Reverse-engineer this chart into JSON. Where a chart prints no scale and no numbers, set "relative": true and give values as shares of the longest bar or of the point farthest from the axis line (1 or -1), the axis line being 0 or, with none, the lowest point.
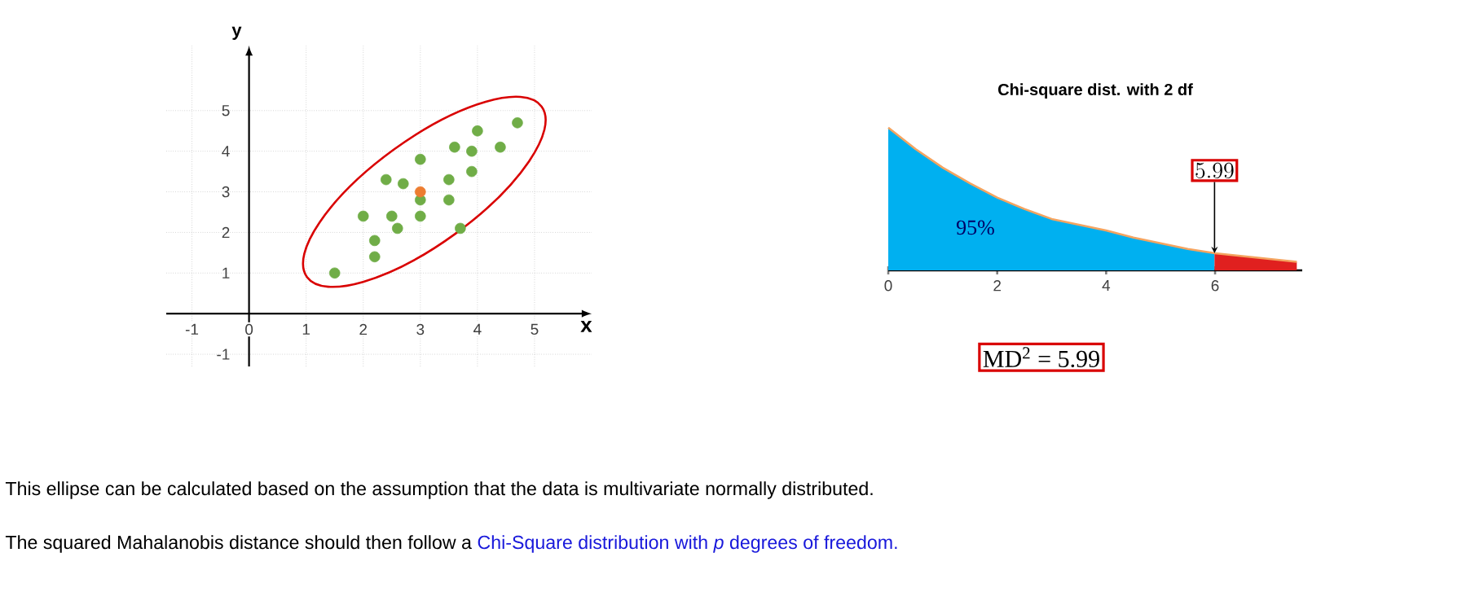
{
  "chart_data": [
    {
      "type": "scatter",
      "xlabel": "x",
      "ylabel": "y",
      "xlim": [
        -1.45,
        6.0
      ],
      "ylim": [
        -1.3,
        6.6
      ],
      "xticks": [
        -1,
        0,
        1,
        2,
        3,
        4,
        5
      ],
      "yticks": [
        -1,
        1,
        2,
        3,
        4,
        5
      ],
      "grid": true,
      "series": [
        {
          "color": "#70ad47",
          "x": [
            1.5,
            2.2,
            2.2,
            2.0,
            2.5,
            2.6,
            2.4,
            2.7,
            3.0,
            3.0,
            3.0,
            3.5,
            3.5,
            3.6,
            3.7,
            3.9,
            3.9,
            4.0,
            4.4,
            4.7
          ],
          "values": [
            1.0,
            1.4,
            1.8,
            2.4,
            2.4,
            2.1,
            3.3,
            3.2,
            3.8,
            2.4,
            2.8,
            3.3,
            2.8,
            4.1,
            2.1,
            3.5,
            4.0,
            4.5,
            4.1,
            4.7
          ]
        },
        {
          "color": "#ed7d31",
          "x": [
            3.0
          ],
          "values": [
            3.0
          ]
        }
      ]
    },
    {
      "type": "area",
      "title": "Chi-square dist. with 2 df",
      "relative": true,
      "xlim": [
        0,
        7.6
      ],
      "xticks": [
        0,
        2,
        4,
        6
      ],
      "series": [
        {
          "color": "#00b0f0",
          "x": [
            0,
            0.5,
            1,
            1.5,
            2,
            2.5,
            3,
            3.5,
            4,
            4.5,
            5,
            5.5,
            5.99
          ],
          "values": [
            1.0,
            0.85,
            0.72,
            0.61,
            0.51,
            0.43,
            0.36,
            0.32,
            0.28,
            0.23,
            0.19,
            0.15,
            0.12
          ]
        },
        {
          "color": "#e0201f",
          "x": [
            5.99,
            6.5,
            7,
            7.5
          ],
          "values": [
            0.12,
            0.1,
            0.08,
            0.06
          ]
        },
        {
          "type": "line",
          "color": "#f4a460",
          "x": [
            0,
            0.5,
            1,
            1.5,
            2,
            2.5,
            3,
            3.5,
            4,
            4.5,
            5,
            5.5,
            6,
            6.5,
            7,
            7.5
          ],
          "values": [
            1.0,
            0.85,
            0.72,
            0.61,
            0.51,
            0.43,
            0.36,
            0.32,
            0.28,
            0.23,
            0.19,
            0.15,
            0.12,
            0.1,
            0.08,
            0.06
          ]
        }
      ],
      "annotations": [
        "95%",
        {
          "text": "5.99",
          "x": 5.99,
          "y": 0.12
        },
        "MD$^{2}$ = 5.99"
      ]
    },
    {
      "type": "other",
      "annotations": [
        "This ellipse can be calculated based on the assumption that the data is multivariate normally distributed.",
        "The squared Mahalanobis distance should then follow a",
        "Chi-Square distribution with *p* degrees of freedom."
      ]
    }
  ]
}
